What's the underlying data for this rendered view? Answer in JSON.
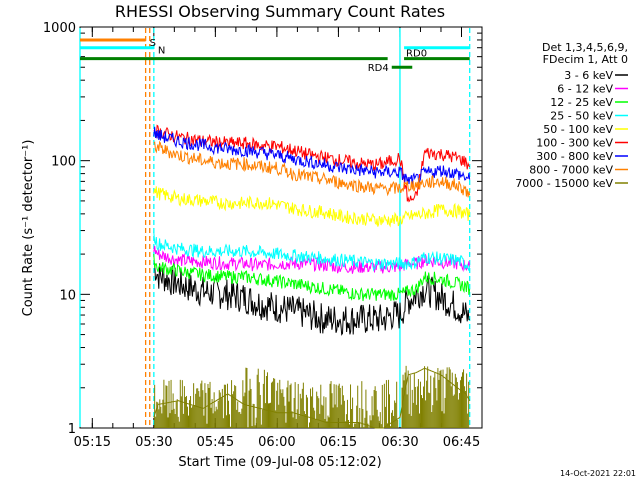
{
  "chart_data": {
    "type": "line",
    "title": "RHESSI Observing Summary Count Rates",
    "xlabel": "Start Time (09-Jul-08 05:12:02)",
    "ylabel": "Count Rate (s⁻¹ detector⁻¹)",
    "yscale": "log",
    "xlim_minutes": [
      0,
      98
    ],
    "ylim": [
      1,
      1000
    ],
    "x_ticks": [
      {
        "label": "05:15",
        "minute": 3
      },
      {
        "label": "05:30",
        "minute": 18
      },
      {
        "label": "05:45",
        "minute": 33
      },
      {
        "label": "06:00",
        "minute": 48
      },
      {
        "label": "06:15",
        "minute": 63
      },
      {
        "label": "06:30",
        "minute": 78
      },
      {
        "label": "06:45",
        "minute": 93
      }
    ],
    "y_ticks": [
      {
        "label": "1",
        "value": 1
      },
      {
        "label": "10",
        "value": 10
      },
      {
        "label": "100",
        "value": 100
      },
      {
        "label": "1000",
        "value": 1000
      }
    ],
    "legend_header": [
      "Det 1,3,4,5,6,9,",
      "FDecim 1, Att 0"
    ],
    "legend_placement": "right",
    "series": [
      {
        "name": "3 - 6 keV",
        "color": "#000000",
        "x": [
          18,
          19,
          24,
          30,
          36,
          40,
          44,
          48,
          52,
          56,
          60,
          64,
          68,
          72,
          74,
          76,
          78,
          80,
          82,
          84,
          88,
          92,
          94,
          95
        ],
        "y": [
          17,
          14,
          12,
          10.5,
          10,
          9.5,
          8.5,
          8,
          7.5,
          7,
          6.5,
          6.5,
          6.5,
          6.5,
          6.5,
          7,
          7,
          9,
          10,
          11,
          9.5,
          8,
          7,
          6.5
        ]
      },
      {
        "name": "6 - 12 keV",
        "color": "#ff00ff",
        "x": [
          18,
          19,
          24,
          30,
          36,
          40,
          44,
          48,
          52,
          56,
          60,
          64,
          68,
          72,
          74,
          76,
          78,
          80,
          82,
          84,
          88,
          92,
          94,
          95
        ],
        "y": [
          22,
          20,
          18,
          17.5,
          17,
          17,
          16.5,
          17,
          17,
          17,
          16.5,
          16,
          16,
          16,
          16,
          16,
          16,
          17,
          17,
          18,
          17.5,
          17,
          16.5,
          16
        ]
      },
      {
        "name": "12 - 25 keV",
        "color": "#00ff00",
        "x": [
          18,
          19,
          24,
          30,
          36,
          40,
          44,
          48,
          52,
          56,
          60,
          64,
          68,
          72,
          74,
          76,
          78,
          80,
          82,
          84,
          88,
          92,
          94,
          95
        ],
        "y": [
          18,
          16,
          15,
          14,
          13.5,
          13.5,
          13,
          12.5,
          12,
          11.5,
          11,
          10.5,
          10,
          10,
          10,
          10,
          10,
          10.5,
          11,
          13.5,
          13,
          12,
          11.5,
          11
        ]
      },
      {
        "name": "25 - 50 keV",
        "color": "#00ffff",
        "x": [
          18,
          19,
          24,
          30,
          36,
          40,
          44,
          48,
          52,
          56,
          60,
          64,
          68,
          72,
          74,
          76,
          78,
          80,
          82,
          84,
          88,
          92,
          94,
          95
        ],
        "y": [
          27,
          24,
          22,
          21,
          21,
          21,
          20.5,
          20,
          19.5,
          19,
          18.5,
          18,
          17.5,
          17,
          17,
          17,
          17,
          17,
          17.5,
          19,
          18.5,
          18,
          17,
          16.5
        ]
      },
      {
        "name": "50 - 100 keV",
        "color": "#ffff00",
        "x": [
          18,
          19,
          24,
          30,
          36,
          40,
          44,
          48,
          52,
          56,
          60,
          64,
          68,
          72,
          74,
          76,
          78,
          80,
          82,
          84,
          88,
          92,
          94,
          95
        ],
        "y": [
          60,
          57,
          52,
          50,
          48,
          48,
          49,
          47,
          44,
          42,
          41,
          38,
          37,
          36,
          36,
          36,
          36,
          38,
          39,
          40,
          43,
          42,
          40,
          39
        ]
      },
      {
        "name": "100 - 300 keV",
        "color": "#ff0000",
        "x": [
          18,
          19,
          24,
          30,
          36,
          40,
          44,
          48,
          52,
          56,
          60,
          64,
          68,
          72,
          74,
          76,
          78,
          80,
          82,
          84,
          88,
          92,
          94,
          95
        ],
        "y": [
          175,
          165,
          150,
          140,
          135,
          135,
          130,
          128,
          120,
          110,
          105,
          100,
          95,
          93,
          95,
          100,
          105,
          50,
          53,
          115,
          112,
          105,
          98,
          90
        ]
      },
      {
        "name": "300 - 800 keV",
        "color": "#0000ff",
        "x": [
          18,
          19,
          24,
          30,
          36,
          40,
          44,
          48,
          52,
          56,
          60,
          64,
          68,
          72,
          74,
          76,
          78,
          80,
          82,
          84,
          88,
          92,
          94,
          95
        ],
        "y": [
          165,
          155,
          140,
          130,
          122,
          120,
          115,
          110,
          103,
          98,
          93,
          88,
          85,
          82,
          82,
          82,
          82,
          70,
          72,
          80,
          85,
          80,
          75,
          72
        ]
      },
      {
        "name": "800 - 7000 keV",
        "color": "#ff8000",
        "x": [
          18,
          19,
          24,
          30,
          36,
          40,
          44,
          48,
          52,
          56,
          60,
          64,
          68,
          72,
          74,
          76,
          78,
          80,
          82,
          84,
          88,
          92,
          94,
          95
        ],
        "y": [
          130,
          125,
          110,
          100,
          95,
          95,
          90,
          88,
          80,
          75,
          72,
          68,
          65,
          62,
          62,
          62,
          62,
          65,
          66,
          68,
          70,
          65,
          60,
          55
        ]
      },
      {
        "name": "7000 - 15000 keV",
        "color": "#808000",
        "x": [
          18,
          19,
          24,
          30,
          36,
          40,
          44,
          48,
          52,
          56,
          60,
          64,
          68,
          72,
          74,
          76,
          78,
          80,
          82,
          84,
          88,
          92,
          94,
          95
        ],
        "y": [
          1.2,
          1.5,
          1.6,
          1.4,
          1.8,
          1.5,
          1.4,
          1.3,
          1.3,
          1.2,
          1.1,
          1.1,
          1.1,
          1.0,
          1.0,
          1.1,
          1.2,
          2.5,
          2.6,
          2.8,
          2.5,
          2.0,
          1.8,
          1.6
        ]
      }
    ],
    "state_bars": [
      {
        "label": "S",
        "color": "#ff8000",
        "x_start": 0,
        "x_end": 16,
        "y": 800
      },
      {
        "label": "N",
        "color": "#00ffff",
        "x_start": 0,
        "x_end": 18,
        "y": 700
      },
      {
        "label": "",
        "color": "#00ffff",
        "x_start": 79,
        "x_end": 95,
        "y": 700
      },
      {
        "label": "",
        "color": "#008000",
        "x_start": 0,
        "x_end": 75,
        "y": 580
      },
      {
        "label": "RD0",
        "color": "#008000",
        "x_start": 79,
        "x_end": 95,
        "y": 580
      },
      {
        "label": "RD4",
        "color": "#008000",
        "x_start": 76,
        "x_end": 81,
        "y": 500
      }
    ],
    "vertical_markers": [
      {
        "color": "#ff8000",
        "style": "dashed",
        "x": 16
      },
      {
        "color": "#ff8000",
        "style": "dashed",
        "x": 17
      },
      {
        "color": "#00ffff",
        "style": "dashed",
        "x": 18
      },
      {
        "color": "#00ffff",
        "style": "solid",
        "x": 0
      },
      {
        "color": "#00ffff",
        "style": "solid",
        "x": 78
      },
      {
        "color": "#00ffff",
        "style": "dashed",
        "x": 95
      }
    ],
    "timestamp": "14-Oct-2021 22:01"
  }
}
